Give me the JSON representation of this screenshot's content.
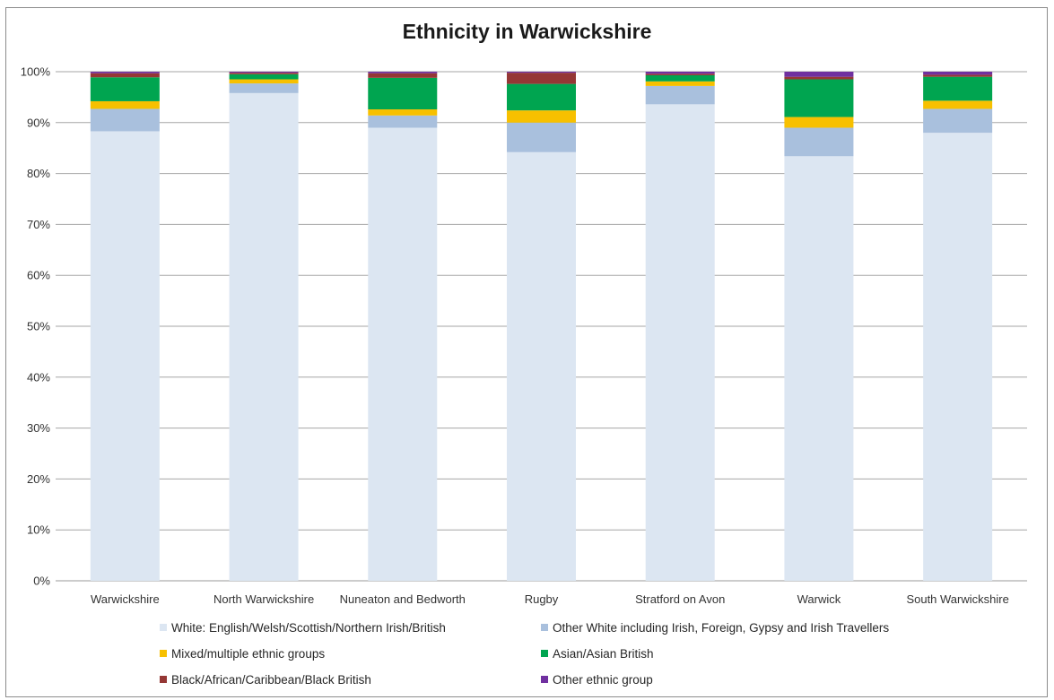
{
  "chart_data": {
    "type": "bar",
    "stacked": true,
    "normalized_percent": true,
    "title": "Ethnicity in Warwickshire",
    "xlabel": "",
    "ylabel": "",
    "ylim": [
      0,
      100
    ],
    "yticks": [
      "0%",
      "10%",
      "20%",
      "30%",
      "40%",
      "50%",
      "60%",
      "70%",
      "80%",
      "90%",
      "100%"
    ],
    "grid": true,
    "legend_position": "bottom",
    "categories": [
      "Warwickshire",
      "North Warwickshire",
      "Nuneaton and Bedworth",
      "Rugby",
      "Stratford on Avon",
      "Warwick",
      "South Warwickshire"
    ],
    "series": [
      {
        "name": "White: English/Welsh/Scottish/Northern Irish/British",
        "color": "#dce6f2",
        "values": [
          88.3,
          95.8,
          89.0,
          84.2,
          93.6,
          83.4,
          88.0
        ]
      },
      {
        "name": "Other White including Irish, Foreign, Gypsy and Irish Travellers",
        "color": "#a9c0dd",
        "values": [
          4.4,
          1.9,
          2.4,
          5.8,
          3.6,
          5.6,
          4.7
        ]
      },
      {
        "name": "Mixed/multiple ethnic groups",
        "color": "#f7c000",
        "values": [
          1.5,
          0.8,
          1.2,
          2.4,
          0.9,
          2.1,
          1.6
        ]
      },
      {
        "name": "Asian/Asian British",
        "color": "#00a550",
        "values": [
          4.7,
          1.0,
          6.2,
          5.2,
          1.2,
          7.4,
          4.7
        ]
      },
      {
        "name": "Black/African/Caribbean/Black British",
        "color": "#953735",
        "values": [
          0.8,
          0.3,
          0.9,
          2.2,
          0.3,
          0.5,
          0.4
        ]
      },
      {
        "name": "Other ethnic group",
        "color": "#7030a0",
        "values": [
          0.3,
          0.2,
          0.3,
          0.2,
          0.4,
          1.0,
          0.6
        ]
      }
    ]
  }
}
